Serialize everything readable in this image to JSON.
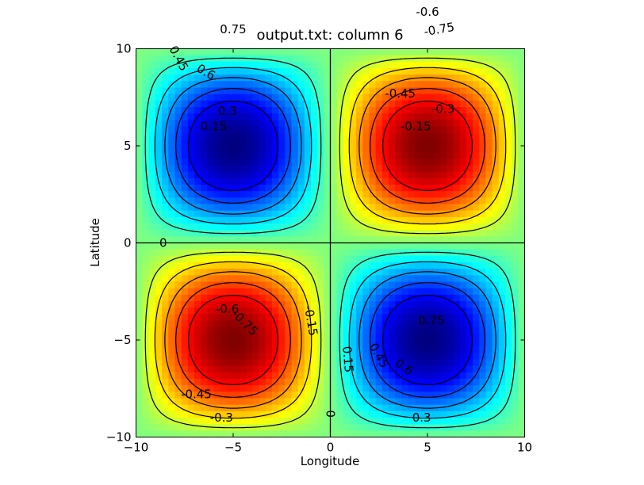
{
  "chart_data": {
    "type": "heatmap",
    "title": "output.txt: column 6",
    "xlabel": "Longitude",
    "ylabel": "Latitude",
    "xlim": [
      -10,
      10
    ],
    "ylim": [
      -10,
      10
    ],
    "xticks": [
      -10,
      -5,
      0,
      5,
      10
    ],
    "yticks": [
      -10,
      -5,
      0,
      5,
      10
    ],
    "xtick_labels": [
      "−10",
      "−5",
      "0",
      "5",
      "10"
    ],
    "ytick_labels": [
      "−10",
      "−5",
      "0",
      "5",
      "10"
    ],
    "colormap": "jet",
    "field": "z = sin(pi*x/10) * sin(pi*y/10)",
    "color_range": [
      -1,
      1
    ],
    "grid_size": 60,
    "contour_levels": [
      -0.75,
      -0.6,
      -0.45,
      -0.3,
      -0.15,
      0,
      0.15,
      0.3,
      0.45,
      0.6,
      0.75
    ],
    "contour_style": {
      "positive": "solid",
      "zero": "solid",
      "negative": "dashed"
    },
    "contour_labels": [
      {
        "text": "0.75",
        "x": 0.0,
        "y": 6.0,
        "qx": -5,
        "qy": 5,
        "rotation": 0
      },
      {
        "text": "0.45",
        "x": -2.8,
        "y": 4.5,
        "qx": -5,
        "qy": 5,
        "rotation": 62
      },
      {
        "text": "0.6",
        "x": -1.4,
        "y": 3.8,
        "qx": -5,
        "qy": 5,
        "rotation": 30
      },
      {
        "text": "0.3",
        "x": -0.3,
        "y": 1.8,
        "qx": -5,
        "qy": 5,
        "rotation": 0
      },
      {
        "text": "0.15",
        "x": -1.0,
        "y": 1.0,
        "qx": -5,
        "qy": 5,
        "rotation": 0
      },
      {
        "text": "0",
        "x": -8.6,
        "y": 0.0,
        "qx": 0,
        "qy": 0,
        "rotation": 0
      },
      {
        "text": "-0.6",
        "x": 0.0,
        "y": 6.9,
        "qx": 5,
        "qy": 5,
        "rotation": 0
      },
      {
        "text": "-0.75",
        "x": 0.6,
        "y": 6.0,
        "qx": 5,
        "qy": 5,
        "rotation": -10
      },
      {
        "text": "-0.45",
        "x": -1.4,
        "y": 2.7,
        "qx": 5,
        "qy": 5,
        "rotation": 0
      },
      {
        "text": "-0.3",
        "x": 0.8,
        "y": 1.9,
        "qx": 5,
        "qy": 5,
        "rotation": 0
      },
      {
        "text": "-0.15",
        "x": -0.6,
        "y": 1.0,
        "qx": 5,
        "qy": 5,
        "rotation": 0
      },
      {
        "text": "-0.6",
        "x": -0.3,
        "y": 1.6,
        "qx": -5,
        "qy": -5,
        "rotation": 0
      },
      {
        "text": "-0.75",
        "x": 0.6,
        "y": 0.9,
        "qx": -5,
        "qy": -5,
        "rotation": 45
      },
      {
        "text": "-0.15",
        "x": 4.0,
        "y": 1.0,
        "qx": -5,
        "qy": -5,
        "rotation": 80
      },
      {
        "text": "-0.45",
        "x": -1.9,
        "y": -2.8,
        "qx": -5,
        "qy": -5,
        "rotation": 0
      },
      {
        "text": "-0.3",
        "x": -0.6,
        "y": -4.0,
        "qx": -5,
        "qy": -5,
        "rotation": 0
      },
      {
        "text": "0.15",
        "x": -4.1,
        "y": -1.0,
        "qx": 5,
        "qy": -5,
        "rotation": 85
      },
      {
        "text": "0.45",
        "x": -2.5,
        "y": -0.8,
        "qx": 5,
        "qy": -5,
        "rotation": 60
      },
      {
        "text": "0.6",
        "x": -1.2,
        "y": -1.4,
        "qx": 5,
        "qy": -5,
        "rotation": 35
      },
      {
        "text": "0.75",
        "x": 0.2,
        "y": 1.0,
        "qx": 5,
        "qy": -5,
        "rotation": 0
      },
      {
        "text": "0.3",
        "x": -0.3,
        "y": -4.0,
        "qx": 5,
        "qy": -5,
        "rotation": 0
      },
      {
        "text": "0",
        "x": 0.0,
        "y": -8.8,
        "qx": 0,
        "qy": 0,
        "rotation": 90
      }
    ]
  }
}
